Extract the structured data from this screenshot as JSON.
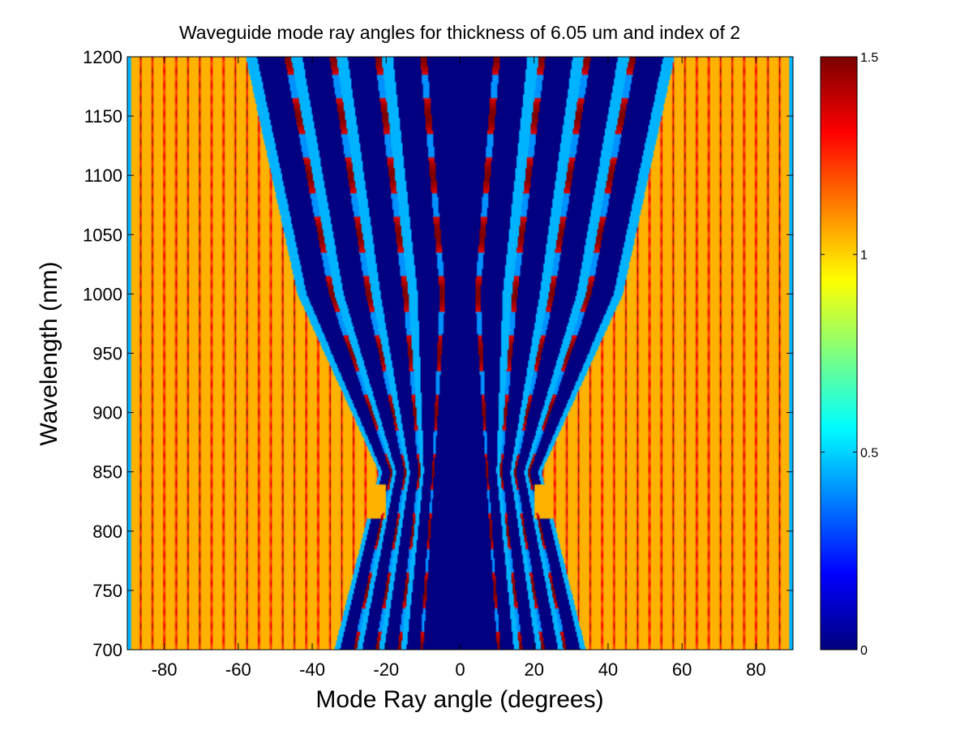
{
  "chart_data": {
    "type": "heatmap",
    "title": "Waveguide mode ray angles for thickness of 6.05 um and index of 2",
    "xlabel": "Mode Ray angle (degrees)",
    "ylabel": "Wavelength (nm)",
    "xlim": [
      -90,
      90
    ],
    "ylim": [
      700,
      1200
    ],
    "xticks": [
      -80,
      -60,
      -40,
      -20,
      0,
      20,
      40,
      60,
      80
    ],
    "yticks": [
      700,
      750,
      800,
      850,
      900,
      950,
      1000,
      1050,
      1100,
      1150,
      1200
    ],
    "colorbar": {
      "range": [
        0,
        1.5
      ],
      "ticks": [
        "0",
        "0.5",
        "1",
        "1.5"
      ],
      "colormap": "jet",
      "colors": [
        "#00008f",
        "#0000ff",
        "#00ffff",
        "#ffff00",
        "#ff0000",
        "#800000"
      ]
    },
    "grid": false,
    "legend": "none",
    "features": {
      "background_level": 1.05,
      "stripe_peak_level": 1.5,
      "central_gap_level": 0,
      "central_gap_half_width_deg": {
        "at_700nm": 10,
        "at_1000nm": 4,
        "at_1200nm": 9
      },
      "outer_boundary_deg": {
        "at_700nm": 34,
        "at_850nm": 22,
        "at_1000nm": 44,
        "at_1200nm": 58
      },
      "bright_band_wavelength_nm": [
        810,
        840
      ]
    }
  }
}
